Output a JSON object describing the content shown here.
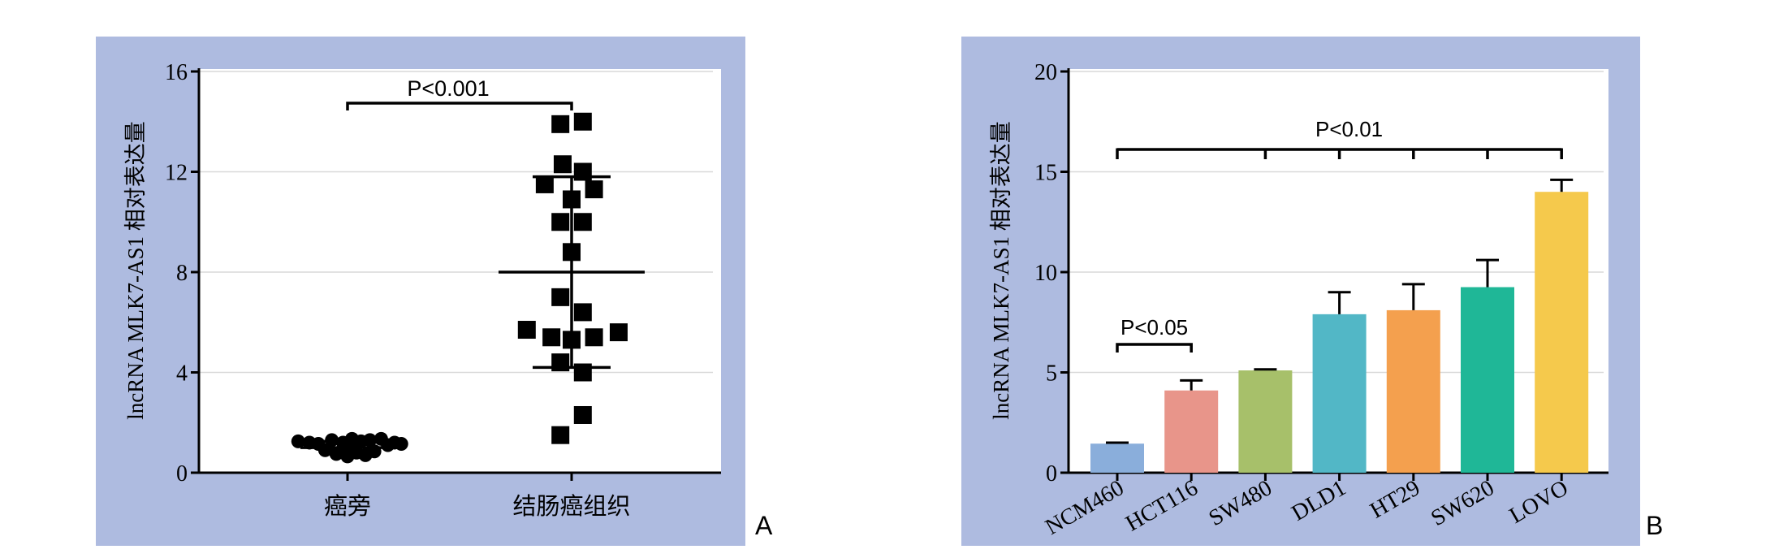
{
  "colors": {
    "panel_bg": "#aebbe0",
    "plot_bg": "#ffffff",
    "axis": "#000000",
    "grid": "#d9d9d9"
  },
  "chart_data": [
    {
      "type": "scatter",
      "panel_label": "A",
      "ylabel": "lncRNA MLK7-AS1 相对表达量",
      "ylim": [
        0,
        16
      ],
      "yticks": [
        "0",
        "4",
        "8",
        "12",
        "16"
      ],
      "yticks_values": [
        0,
        4,
        8,
        12,
        16
      ],
      "grid": true,
      "categories": [
        "癌旁",
        "结肠癌组织"
      ],
      "significance": [
        {
          "label": "P<0.001",
          "between": [
            0,
            1
          ]
        }
      ],
      "groups": [
        {
          "category": "癌旁",
          "marker": "circle",
          "mean": 1.0,
          "sd": [
            0.75,
            1.25
          ],
          "points": [
            {
              "dx": -0.22,
              "y": 1.25
            },
            {
              "dx": -0.17,
              "y": 1.2
            },
            {
              "dx": -0.13,
              "y": 1.15
            },
            {
              "dx": -0.1,
              "y": 0.9
            },
            {
              "dx": -0.07,
              "y": 1.3
            },
            {
              "dx": -0.05,
              "y": 0.75
            },
            {
              "dx": -0.02,
              "y": 1.2
            },
            {
              "dx": 0.0,
              "y": 0.65
            },
            {
              "dx": 0.02,
              "y": 1.35
            },
            {
              "dx": 0.04,
              "y": 0.8
            },
            {
              "dx": 0.06,
              "y": 1.25
            },
            {
              "dx": 0.08,
              "y": 0.7
            },
            {
              "dx": 0.1,
              "y": 1.3
            },
            {
              "dx": 0.12,
              "y": 0.85
            },
            {
              "dx": 0.15,
              "y": 1.35
            },
            {
              "dx": 0.18,
              "y": 1.1
            },
            {
              "dx": 0.21,
              "y": 1.2
            },
            {
              "dx": 0.24,
              "y": 1.15
            },
            {
              "dx": -0.02,
              "y": 0.95
            },
            {
              "dx": 0.03,
              "y": 1.05
            }
          ]
        },
        {
          "category": "结肠癌组织",
          "marker": "square",
          "mean": 8.0,
          "sd": [
            4.2,
            11.8
          ],
          "points": [
            {
              "dx": -0.05,
              "y": 13.9
            },
            {
              "dx": 0.05,
              "y": 14.0
            },
            {
              "dx": -0.04,
              "y": 12.3
            },
            {
              "dx": 0.05,
              "y": 12.0
            },
            {
              "dx": -0.12,
              "y": 11.5
            },
            {
              "dx": 0.1,
              "y": 11.3
            },
            {
              "dx": 0.0,
              "y": 10.9
            },
            {
              "dx": -0.05,
              "y": 10.0
            },
            {
              "dx": 0.05,
              "y": 10.0
            },
            {
              "dx": 0.0,
              "y": 8.8
            },
            {
              "dx": -0.05,
              "y": 7.0
            },
            {
              "dx": 0.05,
              "y": 6.4
            },
            {
              "dx": -0.2,
              "y": 5.7
            },
            {
              "dx": -0.09,
              "y": 5.4
            },
            {
              "dx": 0.0,
              "y": 5.3
            },
            {
              "dx": 0.1,
              "y": 5.4
            },
            {
              "dx": 0.21,
              "y": 5.6
            },
            {
              "dx": -0.05,
              "y": 4.4
            },
            {
              "dx": 0.05,
              "y": 4.0
            },
            {
              "dx": 0.05,
              "y": 2.3
            },
            {
              "dx": -0.05,
              "y": 1.5
            }
          ]
        }
      ]
    },
    {
      "type": "bar",
      "panel_label": "B",
      "ylabel": "lncRNA MLK7-AS1 相对表达量",
      "ylim": [
        0,
        20
      ],
      "yticks": [
        "0",
        "5",
        "10",
        "15",
        "20"
      ],
      "yticks_values": [
        0,
        5,
        10,
        15,
        20
      ],
      "grid": true,
      "categories": [
        "NCM460",
        "HCT116",
        "SW480",
        "DLD1",
        "HT29",
        "SW620",
        "LOVO"
      ],
      "values": [
        1.45,
        4.1,
        5.1,
        7.9,
        8.1,
        9.25,
        14.0
      ],
      "errors": [
        0.05,
        0.5,
        0.05,
        1.1,
        1.3,
        1.35,
        0.6
      ],
      "bar_colors": [
        "#8aaedb",
        "#e8958a",
        "#a7c06a",
        "#52b7c6",
        "#f4a04e",
        "#1fb797",
        "#f5c94c"
      ],
      "significance": [
        {
          "label": "P<0.05",
          "between": [
            0,
            1
          ]
        },
        {
          "label": "P<0.01",
          "from": 0,
          "to": [
            2,
            3,
            4,
            5,
            6
          ]
        }
      ]
    }
  ]
}
